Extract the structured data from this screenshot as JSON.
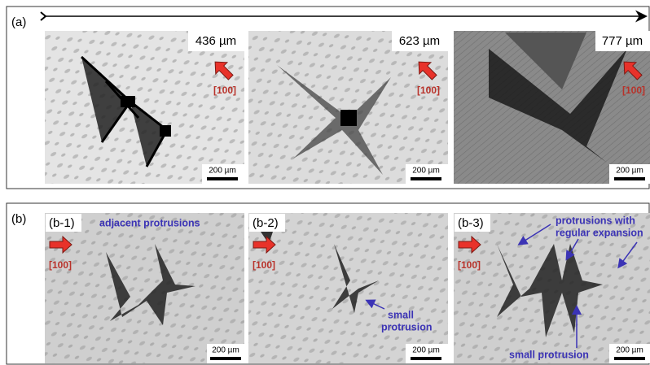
{
  "panels": [
    {
      "label": "(a)",
      "images": [
        {
          "depth": "436 µm",
          "direction": "[100]",
          "scale_bar": "200 µm"
        },
        {
          "depth": "623 µm",
          "direction": "[100]",
          "scale_bar": "200 µm"
        },
        {
          "depth": "777 µm",
          "direction": "[100]",
          "scale_bar": "200 µm"
        }
      ]
    },
    {
      "label": "(b)",
      "images": [
        {
          "label": "(b-1)",
          "direction": "[100]",
          "scale_bar": "200 µm",
          "annotations": [
            {
              "lines": [
                "adjacent protrusions"
              ]
            }
          ]
        },
        {
          "label": "(b-2)",
          "direction": "[100]",
          "scale_bar": "200 µm",
          "annotations": [
            {
              "lines": [
                "small",
                "protrusion"
              ]
            }
          ]
        },
        {
          "label": "(b-3)",
          "direction": "[100]",
          "scale_bar": "200 µm",
          "annotations": [
            {
              "lines": [
                "protrusions with",
                "regular expansion"
              ]
            },
            {
              "lines": [
                "small protrusion"
              ]
            }
          ]
        }
      ]
    }
  ]
}
